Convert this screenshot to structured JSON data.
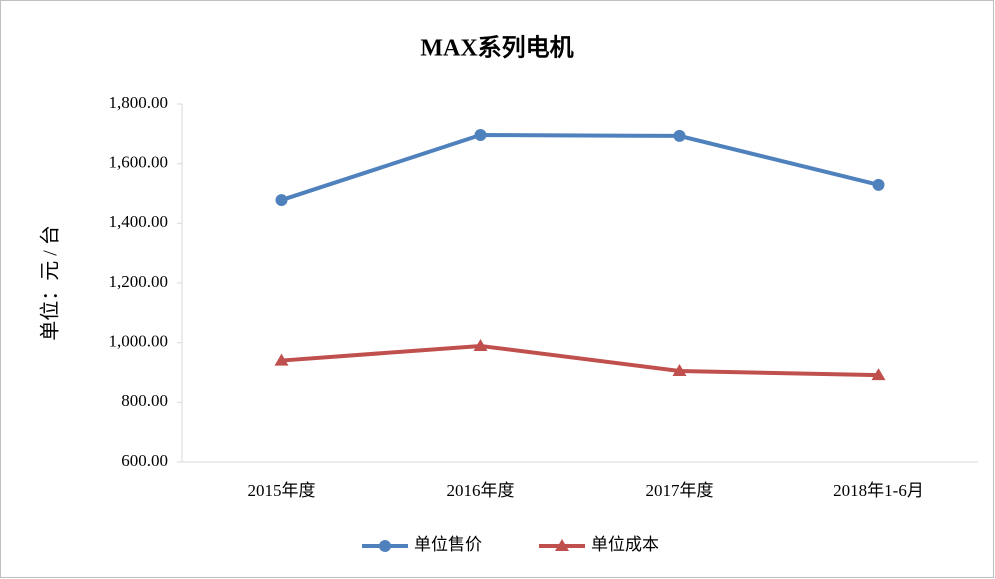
{
  "chart_data": {
    "type": "line",
    "title": "MAX系列电机",
    "y_label": "单位：元 / 台",
    "categories": [
      "2015年度",
      "2016年度",
      "2017年度",
      "2018年1-6月"
    ],
    "series": [
      {
        "name": "单位售价",
        "color": "#4f81bd",
        "marker": "circle",
        "values": [
          1478,
          1696,
          1693,
          1529
        ]
      },
      {
        "name": "单位成本",
        "color": "#c0504d",
        "marker": "triangle",
        "values": [
          940,
          989,
          905,
          891
        ]
      }
    ],
    "ylim": [
      600,
      1800
    ],
    "yticks": [
      {
        "value": 600,
        "label": "600.00"
      },
      {
        "value": 800,
        "label": "800.00"
      },
      {
        "value": 1000,
        "label": "1,000.00"
      },
      {
        "value": 1200,
        "label": "1,200.00"
      },
      {
        "value": 1400,
        "label": "1,400.00"
      },
      {
        "value": 1600,
        "label": "1,600.00"
      },
      {
        "value": 1800,
        "label": "1,800.00"
      }
    ],
    "grid": false,
    "legend": "bottom"
  }
}
